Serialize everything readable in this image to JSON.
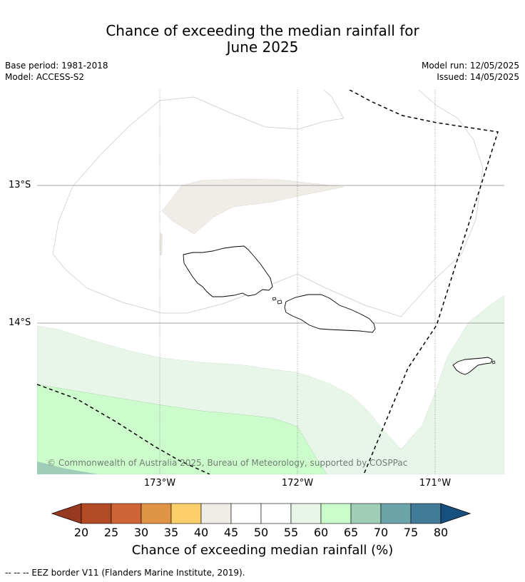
{
  "header": {
    "title_line1": "Chance of exceeding the median rainfall for",
    "title_line2": "June 2025",
    "base_period": "Base period: 1981-2018",
    "model": "Model: ACCESS-S2",
    "model_run": "Model run: 12/05/2025",
    "issued": "Issued: 14/05/2025"
  },
  "map": {
    "lat_labels": [
      "13°S",
      "14°S"
    ],
    "lon_labels": [
      "173°W",
      "172°W",
      "171°W"
    ],
    "copyright": "© Commonwealth of Australia 2025, Bureau of Meteorology, supported by COSPPac",
    "colors": {
      "band_45_50": "#f0ece8",
      "band_55_60": "#e8f5e9",
      "band_60_65": "#ccfccc",
      "band_65_70": "#9fcdb8"
    }
  },
  "colorbar": {
    "ticks": [
      "20",
      "25",
      "30",
      "35",
      "40",
      "45",
      "50",
      "55",
      "60",
      "65",
      "70",
      "75",
      "80"
    ],
    "colors": [
      "#b34a26",
      "#cf6534",
      "#e09546",
      "#fdcf6b",
      "#f0ece8",
      "#ffffff",
      "#ffffff",
      "#e8f5e9",
      "#ccfccc",
      "#9fcdb8",
      "#6ba5aa",
      "#427a99"
    ],
    "low_extend_color": "#993820",
    "high_extend_color": "#16507f",
    "label": "Chance of exceeding median rainfall (%)"
  },
  "footer": {
    "legend_text": "--  --  -- EEZ border V11 (Flanders Marine Institute, 2019)."
  }
}
